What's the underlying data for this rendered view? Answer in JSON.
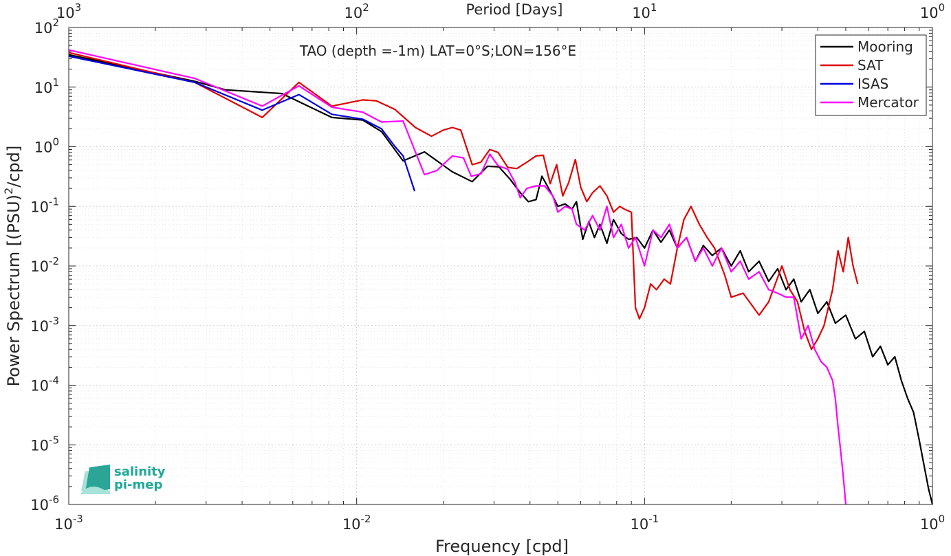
{
  "chart_data": {
    "type": "line",
    "title": "TAO (depth =-1m) LAT=0°S;LON=156°E",
    "xlabel": "Frequency [cpd]",
    "ylabel": "Power Spectrum [(PSU)",
    "ylabel_sup": "2",
    "ylabel_tail": "/cpd]",
    "top_xlabel": "Period [Days]",
    "xscale": "log",
    "yscale": "log",
    "xlim": [
      0.001,
      1
    ],
    "ylim": [
      1e-06,
      100
    ],
    "grid": true,
    "legend_position": "top-right",
    "x_ticks": [
      {
        "value": 0.001,
        "base": "10",
        "exp": "-3"
      },
      {
        "value": 0.01,
        "base": "10",
        "exp": "-2"
      },
      {
        "value": 0.1,
        "base": "10",
        "exp": "-1"
      },
      {
        "value": 1,
        "base": "10",
        "exp": "0"
      }
    ],
    "top_ticks": [
      {
        "value": 0.001,
        "base": "10",
        "exp": "3"
      },
      {
        "value": 0.01,
        "base": "10",
        "exp": "2"
      },
      {
        "value": 0.1,
        "base": "10",
        "exp": "1"
      },
      {
        "value": 1,
        "base": "10",
        "exp": "0"
      }
    ],
    "y_ticks": [
      {
        "value": 100,
        "base": "10",
        "exp": "2"
      },
      {
        "value": 10,
        "base": "10",
        "exp": "1"
      },
      {
        "value": 1,
        "base": "10",
        "exp": "0"
      },
      {
        "value": 0.1,
        "base": "10",
        "exp": "-1"
      },
      {
        "value": 0.01,
        "base": "10",
        "exp": "-2"
      },
      {
        "value": 0.001,
        "base": "10",
        "exp": "-3"
      },
      {
        "value": 0.0001,
        "base": "10",
        "exp": "-4"
      },
      {
        "value": 1e-05,
        "base": "10",
        "exp": "-5"
      },
      {
        "value": 1e-06,
        "base": "10",
        "exp": "-6"
      }
    ],
    "series": [
      {
        "name": "Mooring",
        "color": "#000000",
        "points": [
          [
            0.001,
            35
          ],
          [
            0.00274,
            12.5
          ],
          [
            0.0035,
            9
          ],
          [
            0.0055,
            7.8
          ],
          [
            0.0082,
            3.1
          ],
          [
            0.0105,
            2.8
          ],
          [
            0.0122,
            1.8
          ],
          [
            0.0145,
            0.58
          ],
          [
            0.0172,
            0.82
          ],
          [
            0.0215,
            0.38
          ],
          [
            0.0252,
            0.26
          ],
          [
            0.0285,
            0.47
          ],
          [
            0.0312,
            0.46
          ],
          [
            0.034,
            0.29
          ],
          [
            0.037,
            0.17
          ],
          [
            0.0395,
            0.12
          ],
          [
            0.042,
            0.13
          ],
          [
            0.044,
            0.32
          ],
          [
            0.047,
            0.18
          ],
          [
            0.05,
            0.1
          ],
          [
            0.053,
            0.11
          ],
          [
            0.056,
            0.09
          ],
          [
            0.058,
            0.12
          ],
          [
            0.061,
            0.028
          ],
          [
            0.064,
            0.055
          ],
          [
            0.067,
            0.03
          ],
          [
            0.07,
            0.05
          ],
          [
            0.074,
            0.024
          ],
          [
            0.078,
            0.06
          ],
          [
            0.083,
            0.035
          ],
          [
            0.088,
            0.028
          ],
          [
            0.094,
            0.03
          ],
          [
            0.1,
            0.02
          ],
          [
            0.107,
            0.04
          ],
          [
            0.114,
            0.025
          ],
          [
            0.122,
            0.04
          ],
          [
            0.13,
            0.02
          ],
          [
            0.14,
            0.03
          ],
          [
            0.15,
            0.012
          ],
          [
            0.16,
            0.022
          ],
          [
            0.172,
            0.015
          ],
          [
            0.185,
            0.02
          ],
          [
            0.2,
            0.01
          ],
          [
            0.215,
            0.018
          ],
          [
            0.23,
            0.008
          ],
          [
            0.25,
            0.012
          ],
          [
            0.27,
            0.0055
          ],
          [
            0.29,
            0.009
          ],
          [
            0.31,
            0.004
          ],
          [
            0.33,
            0.006
          ],
          [
            0.35,
            0.0025
          ],
          [
            0.375,
            0.004
          ],
          [
            0.4,
            0.0016
          ],
          [
            0.43,
            0.0025
          ],
          [
            0.46,
            0.0011
          ],
          [
            0.5,
            0.0015
          ],
          [
            0.54,
            0.0006
          ],
          [
            0.58,
            0.0008
          ],
          [
            0.62,
            0.0003
          ],
          [
            0.66,
            0.00045
          ],
          [
            0.7,
            0.00022
          ],
          [
            0.74,
            0.0003
          ],
          [
            0.78,
            0.00012
          ],
          [
            0.82,
            6e-05
          ],
          [
            0.86,
            3.5e-05
          ],
          [
            0.9,
            1.2e-05
          ],
          [
            0.94,
            4e-06
          ],
          [
            0.97,
            1.8e-06
          ],
          [
            1.0,
            1e-06
          ]
        ]
      },
      {
        "name": "SAT",
        "color": "#e00000",
        "points": [
          [
            0.001,
            38
          ],
          [
            0.00274,
            12
          ],
          [
            0.0047,
            3.1
          ],
          [
            0.0063,
            12
          ],
          [
            0.0082,
            4.8
          ],
          [
            0.0105,
            6.1
          ],
          [
            0.0117,
            5.9
          ],
          [
            0.0136,
            4.2
          ],
          [
            0.016,
            2.1
          ],
          [
            0.0182,
            1.5
          ],
          [
            0.02,
            1.9
          ],
          [
            0.0215,
            2.1
          ],
          [
            0.023,
            1.9
          ],
          [
            0.0252,
            0.5
          ],
          [
            0.027,
            0.55
          ],
          [
            0.029,
            0.9
          ],
          [
            0.031,
            0.8
          ],
          [
            0.0335,
            0.45
          ],
          [
            0.036,
            0.43
          ],
          [
            0.039,
            0.55
          ],
          [
            0.042,
            0.7
          ],
          [
            0.0445,
            0.72
          ],
          [
            0.047,
            0.24
          ],
          [
            0.0495,
            0.5
          ],
          [
            0.052,
            0.15
          ],
          [
            0.0545,
            0.25
          ],
          [
            0.0575,
            0.61
          ],
          [
            0.06,
            0.21
          ],
          [
            0.063,
            0.12
          ],
          [
            0.066,
            0.17
          ],
          [
            0.07,
            0.22
          ],
          [
            0.074,
            0.15
          ],
          [
            0.078,
            0.08
          ],
          [
            0.082,
            0.1
          ],
          [
            0.085,
            0.09
          ],
          [
            0.09,
            0.08
          ],
          [
            0.093,
            0.002
          ],
          [
            0.096,
            0.0013
          ],
          [
            0.1,
            0.002
          ],
          [
            0.105,
            0.005
          ],
          [
            0.11,
            0.004
          ],
          [
            0.117,
            0.006
          ],
          [
            0.123,
            0.005
          ],
          [
            0.13,
            0.02
          ],
          [
            0.137,
            0.06
          ],
          [
            0.145,
            0.1
          ],
          [
            0.155,
            0.05
          ],
          [
            0.165,
            0.03
          ],
          [
            0.175,
            0.02
          ],
          [
            0.19,
            0.007
          ],
          [
            0.2,
            0.003
          ],
          [
            0.22,
            0.0035
          ],
          [
            0.25,
            0.0015
          ],
          [
            0.27,
            0.0025
          ],
          [
            0.3,
            0.01
          ],
          [
            0.32,
            0.004
          ],
          [
            0.34,
            0.0025
          ],
          [
            0.36,
            0.0008
          ],
          [
            0.38,
            0.0004
          ],
          [
            0.4,
            0.0006
          ],
          [
            0.42,
            0.001
          ],
          [
            0.45,
            0.004
          ],
          [
            0.47,
            0.018
          ],
          [
            0.49,
            0.008
          ],
          [
            0.51,
            0.03
          ],
          [
            0.53,
            0.01
          ],
          [
            0.55,
            0.005
          ]
        ]
      },
      {
        "name": "ISAS",
        "color": "#0000e0",
        "points": [
          [
            0.001,
            33
          ],
          [
            0.00274,
            12
          ],
          [
            0.0047,
            4.1
          ],
          [
            0.0063,
            7.5
          ],
          [
            0.0082,
            3.5
          ],
          [
            0.0105,
            2.9
          ],
          [
            0.0122,
            2.0
          ],
          [
            0.0136,
            1.0
          ],
          [
            0.0145,
            0.7
          ],
          [
            0.0159,
            0.18
          ]
        ]
      },
      {
        "name": "Mercator",
        "color": "#ff00ff",
        "points": [
          [
            0.001,
            42
          ],
          [
            0.00274,
            14
          ],
          [
            0.0047,
            4.8
          ],
          [
            0.0063,
            10.5
          ],
          [
            0.0082,
            4.6
          ],
          [
            0.0105,
            3.8
          ],
          [
            0.0122,
            2.6
          ],
          [
            0.0145,
            2.7
          ],
          [
            0.0172,
            0.34
          ],
          [
            0.019,
            0.4
          ],
          [
            0.0215,
            0.7
          ],
          [
            0.0235,
            0.65
          ],
          [
            0.025,
            0.32
          ],
          [
            0.027,
            0.35
          ],
          [
            0.029,
            0.75
          ],
          [
            0.031,
            0.48
          ],
          [
            0.0335,
            0.42
          ],
          [
            0.0355,
            0.25
          ],
          [
            0.037,
            0.14
          ],
          [
            0.039,
            0.2
          ],
          [
            0.042,
            0.22
          ],
          [
            0.045,
            0.22
          ],
          [
            0.048,
            0.15
          ],
          [
            0.05,
            0.08
          ],
          [
            0.053,
            0.1
          ],
          [
            0.056,
            0.09
          ],
          [
            0.058,
            0.05
          ],
          [
            0.062,
            0.04
          ],
          [
            0.066,
            0.07
          ],
          [
            0.07,
            0.04
          ],
          [
            0.074,
            0.1
          ],
          [
            0.078,
            0.03
          ],
          [
            0.083,
            0.05
          ],
          [
            0.088,
            0.02
          ],
          [
            0.093,
            0.03
          ],
          [
            0.1,
            0.01
          ],
          [
            0.107,
            0.04
          ],
          [
            0.114,
            0.03
          ],
          [
            0.122,
            0.05
          ],
          [
            0.13,
            0.02
          ],
          [
            0.14,
            0.03
          ],
          [
            0.15,
            0.012
          ],
          [
            0.16,
            0.02
          ],
          [
            0.172,
            0.01
          ],
          [
            0.185,
            0.02
          ],
          [
            0.2,
            0.008
          ],
          [
            0.215,
            0.012
          ],
          [
            0.23,
            0.006
          ],
          [
            0.25,
            0.008
          ],
          [
            0.27,
            0.004
          ],
          [
            0.29,
            0.0035
          ],
          [
            0.31,
            0.003
          ],
          [
            0.33,
            0.003
          ],
          [
            0.35,
            0.0006
          ],
          [
            0.37,
            0.001
          ],
          [
            0.39,
            0.0004
          ],
          [
            0.41,
            0.00025
          ],
          [
            0.43,
            0.0002
          ],
          [
            0.45,
            0.00012
          ],
          [
            0.46,
            6e-05
          ],
          [
            0.47,
            2e-05
          ],
          [
            0.48,
            8e-06
          ],
          [
            0.49,
            3e-06
          ],
          [
            0.5,
            1e-06
          ]
        ]
      }
    ]
  },
  "logo": {
    "line1": "salinity",
    "line2": "pi-mep",
    "color": "#1fa896"
  }
}
